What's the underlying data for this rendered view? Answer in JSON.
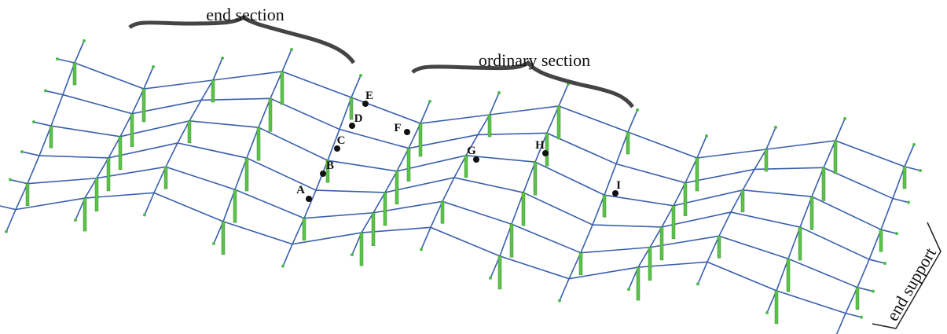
{
  "labels": {
    "end_section": "end section",
    "ordinary_section": "ordinary section",
    "end_support": "end support"
  },
  "nodes": [
    {
      "label": "A"
    },
    {
      "label": "B"
    },
    {
      "label": "C"
    },
    {
      "label": "D"
    },
    {
      "label": "E"
    },
    {
      "label": "F"
    },
    {
      "label": "G"
    },
    {
      "label": "H"
    },
    {
      "label": "I"
    }
  ]
}
